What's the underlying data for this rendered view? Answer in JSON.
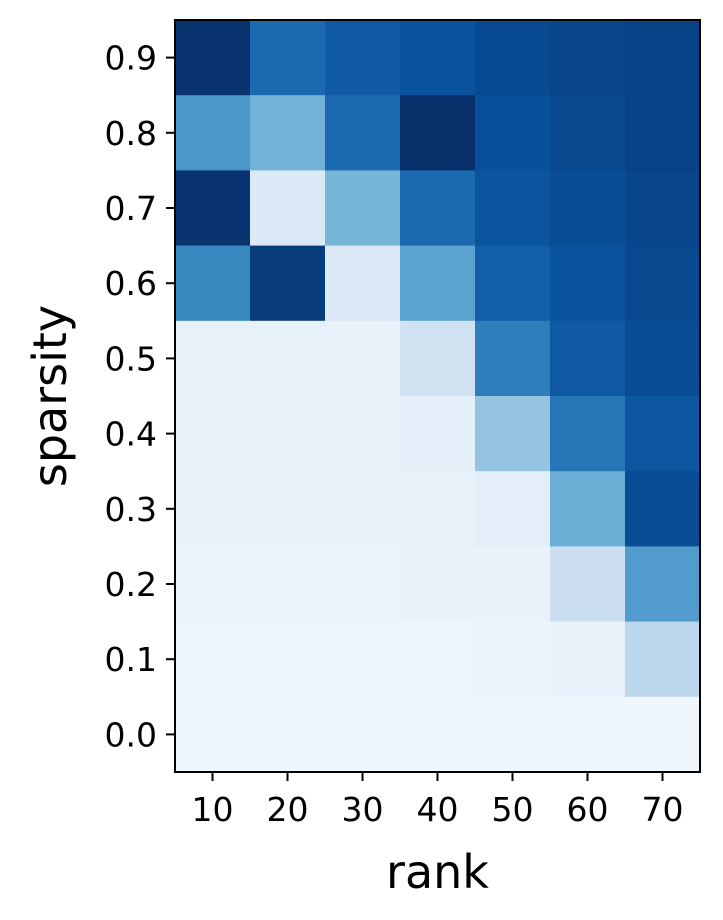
{
  "chart_data": {
    "type": "heatmap",
    "title": "",
    "xlabel": "rank",
    "ylabel": "sparsity",
    "x": [
      "10",
      "20",
      "30",
      "40",
      "50",
      "60",
      "70"
    ],
    "y": [
      "0.9",
      "0.8",
      "0.7",
      "0.6",
      "0.5",
      "0.4",
      "0.3",
      "0.2",
      "0.1",
      "0.0"
    ],
    "colormap": "Blues",
    "grid": false,
    "colorbar": false,
    "values": [
      [
        0.99,
        0.78,
        0.84,
        0.87,
        0.9,
        0.92,
        0.93
      ],
      [
        0.6,
        0.48,
        0.78,
        1.0,
        0.88,
        0.91,
        0.93
      ],
      [
        0.99,
        0.14,
        0.47,
        0.78,
        0.86,
        0.89,
        0.92
      ],
      [
        0.66,
        0.96,
        0.14,
        0.55,
        0.82,
        0.87,
        0.91
      ],
      [
        0.08,
        0.08,
        0.08,
        0.2,
        0.7,
        0.84,
        0.89
      ],
      [
        0.07,
        0.07,
        0.07,
        0.09,
        0.4,
        0.73,
        0.85
      ],
      [
        0.07,
        0.07,
        0.07,
        0.08,
        0.1,
        0.5,
        0.89
      ],
      [
        0.06,
        0.06,
        0.06,
        0.07,
        0.07,
        0.23,
        0.58
      ],
      [
        0.05,
        0.05,
        0.05,
        0.05,
        0.06,
        0.07,
        0.28
      ],
      [
        0.04,
        0.04,
        0.04,
        0.04,
        0.04,
        0.04,
        0.04
      ]
    ]
  }
}
